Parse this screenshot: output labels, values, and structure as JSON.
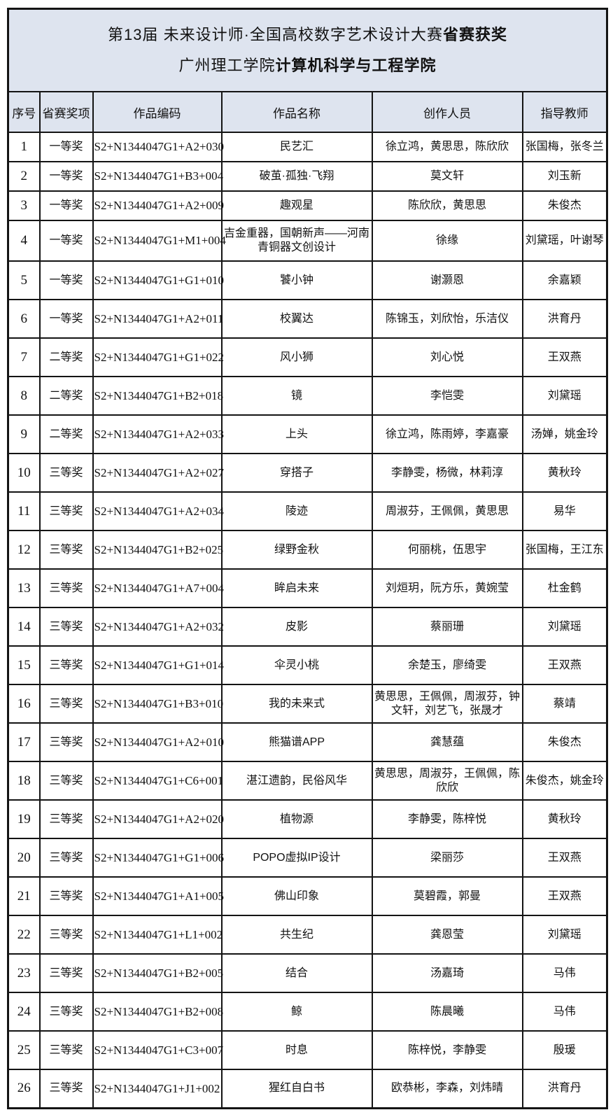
{
  "colors": {
    "panel_bg": "#dee4ef",
    "border": "#141414",
    "cell_bg": "#ffffff",
    "text": "#111111"
  },
  "title": {
    "line1_regular": "第13届 未来设计师·全国高校数字艺术设计大赛",
    "line1_bold": "省赛获奖",
    "line2_regular": "广州理工学院",
    "line2_bold": "计算机科学与工程学院"
  },
  "table": {
    "headers": [
      "序号",
      "省赛奖项",
      "作品编码",
      "作品名称",
      "创作人员",
      "指导教师"
    ],
    "rows": [
      {
        "no": "1",
        "award": "一等奖",
        "code": "S2+N1344047G1+A2+030",
        "title": "民艺汇",
        "creators": "徐立鸿，黄思思，陈欣欣",
        "teachers": "张国梅，张冬兰"
      },
      {
        "no": "2",
        "award": "一等奖",
        "code": "S2+N1344047G1+B3+004",
        "title": "破茧·孤独·飞翔",
        "creators": "莫文轩",
        "teachers": "刘玉新"
      },
      {
        "no": "3",
        "award": "一等奖",
        "code": "S2+N1344047G1+A2+009",
        "title": "趣观星",
        "creators": "陈欣欣，黄思思",
        "teachers": "朱俊杰"
      },
      {
        "no": "4",
        "award": "一等奖",
        "code": "S2+N1344047G1+M1+004",
        "title": "吉金重器，国朝新声——河南青铜器文创设计",
        "creators": "徐缘",
        "teachers": "刘黛瑶，叶谢琴"
      },
      {
        "no": "5",
        "award": "一等奖",
        "code": "S2+N1344047G1+G1+010",
        "title": "饕小钟",
        "creators": "谢灏恩",
        "teachers": "余嘉颖"
      },
      {
        "no": "6",
        "award": "一等奖",
        "code": "S2+N1344047G1+A2+011",
        "title": "校翼达",
        "creators": "陈锦玉，刘欣怡，乐洁仪",
        "teachers": "洪育丹"
      },
      {
        "no": "7",
        "award": "二等奖",
        "code": "S2+N1344047G1+G1+022",
        "title": "风小狮",
        "creators": "刘心悦",
        "teachers": "王双燕"
      },
      {
        "no": "8",
        "award": "二等奖",
        "code": "S2+N1344047G1+B2+018",
        "title": "镜",
        "creators": "李恺雯",
        "teachers": "刘黛瑶"
      },
      {
        "no": "9",
        "award": "二等奖",
        "code": "S2+N1344047G1+A2+033",
        "title": "上头",
        "creators": "徐立鸿，陈雨婷，李嘉豪",
        "teachers": "汤婵，姚金玲"
      },
      {
        "no": "10",
        "award": "三等奖",
        "code": "S2+N1344047G1+A2+027",
        "title": "穿搭子",
        "creators": "李静雯，杨微，林莉淳",
        "teachers": "黄秋玲"
      },
      {
        "no": "11",
        "award": "三等奖",
        "code": "S2+N1344047G1+A2+034",
        "title": "陵迹",
        "creators": "周淑芬，王佩佩，黄思思",
        "teachers": "易华"
      },
      {
        "no": "12",
        "award": "三等奖",
        "code": "S2+N1344047G1+B2+025",
        "title": "绿野金秋",
        "creators": "何丽桃，伍思宇",
        "teachers": "张国梅，王江东"
      },
      {
        "no": "13",
        "award": "三等奖",
        "code": "S2+N1344047G1+A7+004",
        "title": "眸启未来",
        "creators": "刘烜玥，阮方乐，黄婉莹",
        "teachers": "杜金鹤"
      },
      {
        "no": "14",
        "award": "三等奖",
        "code": "S2+N1344047G1+A2+032",
        "title": "皮影",
        "creators": "蔡丽珊",
        "teachers": "刘黛瑶"
      },
      {
        "no": "15",
        "award": "三等奖",
        "code": "S2+N1344047G1+G1+014",
        "title": "伞灵小桃",
        "creators": "余楚玉，廖绮雯",
        "teachers": "王双燕"
      },
      {
        "no": "16",
        "award": "三等奖",
        "code": "S2+N1344047G1+B3+010",
        "title": "我的未来式",
        "creators": "黄思思，王佩佩，周淑芬，钟文轩，刘艺飞，张晟才",
        "teachers": "蔡靖"
      },
      {
        "no": "17",
        "award": "三等奖",
        "code": "S2+N1344047G1+A2+010",
        "title": "熊猫谱APP",
        "creators": "龚慧蕴",
        "teachers": "朱俊杰"
      },
      {
        "no": "18",
        "award": "三等奖",
        "code": "S2+N1344047G1+C6+001",
        "title": "湛江遗韵，民俗风华",
        "creators": "黄思思，周淑芬，王佩佩，陈欣欣",
        "teachers": "朱俊杰，姚金玲"
      },
      {
        "no": "19",
        "award": "三等奖",
        "code": "S2+N1344047G1+A2+020",
        "title": "植物源",
        "creators": "李静雯，陈梓悦",
        "teachers": "黄秋玲"
      },
      {
        "no": "20",
        "award": "三等奖",
        "code": "S2+N1344047G1+G1+006",
        "title": "POPO虚拟IP设计",
        "creators": "梁丽莎",
        "teachers": "王双燕"
      },
      {
        "no": "21",
        "award": "三等奖",
        "code": "S2+N1344047G1+A1+005",
        "title": "佛山印象",
        "creators": "莫碧霞，郭曼",
        "teachers": "王双燕"
      },
      {
        "no": "22",
        "award": "三等奖",
        "code": "S2+N1344047G1+L1+002",
        "title": "共生纪",
        "creators": "龚恩莹",
        "teachers": "刘黛瑶"
      },
      {
        "no": "23",
        "award": "三等奖",
        "code": "S2+N1344047G1+B2+005",
        "title": "结合",
        "creators": "汤嘉琦",
        "teachers": "马伟"
      },
      {
        "no": "24",
        "award": "三等奖",
        "code": "S2+N1344047G1+B2+008",
        "title": "鲸",
        "creators": "陈晨曦",
        "teachers": "马伟"
      },
      {
        "no": "25",
        "award": "三等奖",
        "code": "S2+N1344047G1+C3+007",
        "title": "时息",
        "creators": "陈梓悦，李静雯",
        "teachers": "殷瑗"
      },
      {
        "no": "26",
        "award": "三等奖",
        "code": "S2+N1344047G1+J1+002",
        "title": "猩红自白书",
        "creators": "欧恭彬，李森，刘炜晴",
        "teachers": "洪育丹"
      }
    ]
  }
}
